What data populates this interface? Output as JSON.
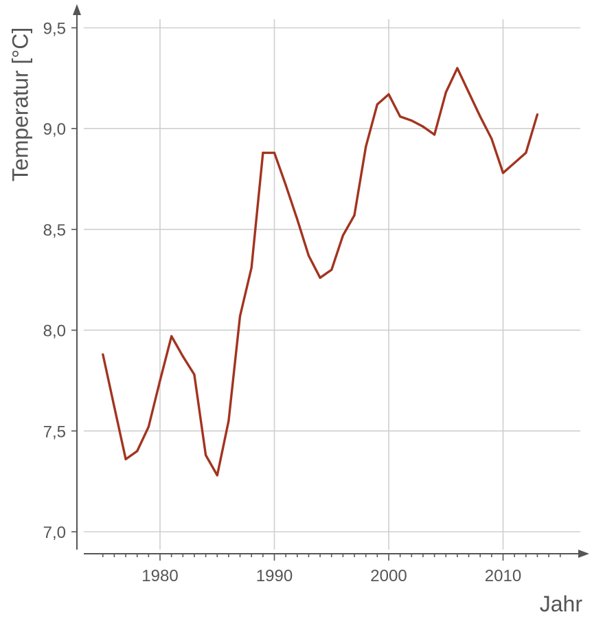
{
  "chart_data": {
    "type": "line",
    "title": "",
    "xlabel": "Jahr",
    "ylabel": "Temperatur [°C]",
    "xlim": [
      1970,
      2017
    ],
    "ylim": [
      6.92,
      9.65
    ],
    "grid": true,
    "x_ticks": [
      1980,
      1990,
      2000,
      2010
    ],
    "x_tick_labels": [
      "1980",
      "1990",
      "2000",
      "2010"
    ],
    "y_ticks": [
      7.0,
      7.5,
      8.0,
      8.5,
      9.0,
      9.5
    ],
    "y_tick_labels": [
      "7,0",
      "7,5",
      "8,0",
      "8,5",
      "9,0",
      "9,5"
    ],
    "line_color": "#A23420",
    "series": [
      {
        "x": [
          1975,
          1976,
          1977,
          1978,
          1979,
          1980,
          1981,
          1982,
          1983,
          1984,
          1985,
          1986,
          1987,
          1988,
          1989,
          1990,
          1991,
          1992,
          1993,
          1994,
          1995,
          1996,
          1997,
          1998,
          1999,
          2000,
          2001,
          2002,
          2003,
          2004,
          2005,
          2006,
          2007,
          2008,
          2009,
          2010,
          2011,
          2012,
          2013
        ],
        "values": [
          7.88,
          7.62,
          7.36,
          7.4,
          7.52,
          7.75,
          7.97,
          7.87,
          7.78,
          7.38,
          7.28,
          7.55,
          8.07,
          8.31,
          8.88,
          8.88,
          8.72,
          8.55,
          8.37,
          8.26,
          8.3,
          8.47,
          8.57,
          8.91,
          9.12,
          9.17,
          9.06,
          9.04,
          9.01,
          8.97,
          9.18,
          9.3,
          9.18,
          9.06,
          8.95,
          8.78,
          8.83,
          8.88,
          9.07
        ]
      }
    ]
  }
}
